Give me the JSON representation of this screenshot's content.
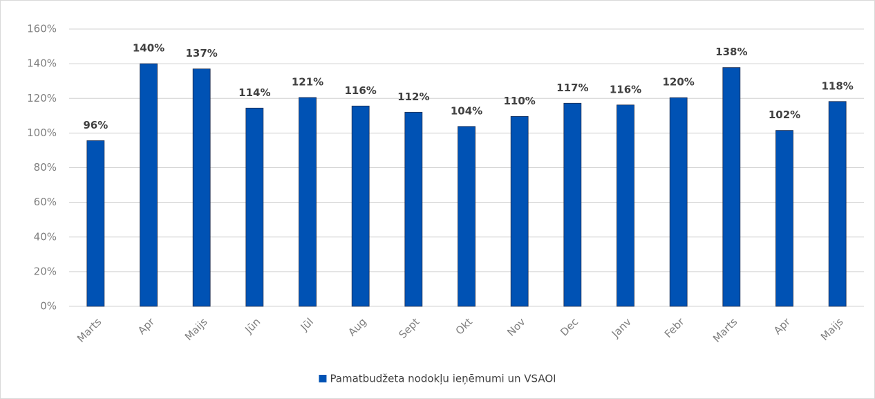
{
  "chart_data": {
    "type": "bar",
    "categories": [
      "Marts",
      "Apr",
      "Maijs",
      "Jūn",
      "Jūl",
      "Aug",
      "Sept",
      "Okt",
      "Nov",
      "Dec",
      "Janv",
      "Febr",
      "Marts",
      "Apr",
      "Maijs"
    ],
    "series": [
      {
        "name": "Pamatbudžeta nodokļu ieņēmumi un VSAOI",
        "color": "#0052b4",
        "values": [
          95.6,
          140,
          137,
          114.4,
          120.5,
          115.6,
          112,
          103.8,
          109.6,
          117.2,
          116.2,
          120.4,
          137.8,
          101.5,
          118.2
        ],
        "value_labels": [
          "96%",
          "140%",
          "137%",
          "114%",
          "121%",
          "116%",
          "112%",
          "104%",
          "110%",
          "117%",
          "116%",
          "120%",
          "138%",
          "102%",
          "118%"
        ]
      }
    ],
    "ylim": [
      0,
      160
    ],
    "yticks": [
      {
        "value": 0,
        "label": "0%"
      },
      {
        "value": 20,
        "label": "20%"
      },
      {
        "value": 40,
        "label": "40%"
      },
      {
        "value": 60,
        "label": "60%"
      },
      {
        "value": 80,
        "label": "80%"
      },
      {
        "value": 100,
        "label": "100%"
      },
      {
        "value": 120,
        "label": "120%"
      },
      {
        "value": 140,
        "label": "140%"
      },
      {
        "value": 160,
        "label": "160%"
      }
    ],
    "grid": true,
    "legend": "bottom"
  }
}
